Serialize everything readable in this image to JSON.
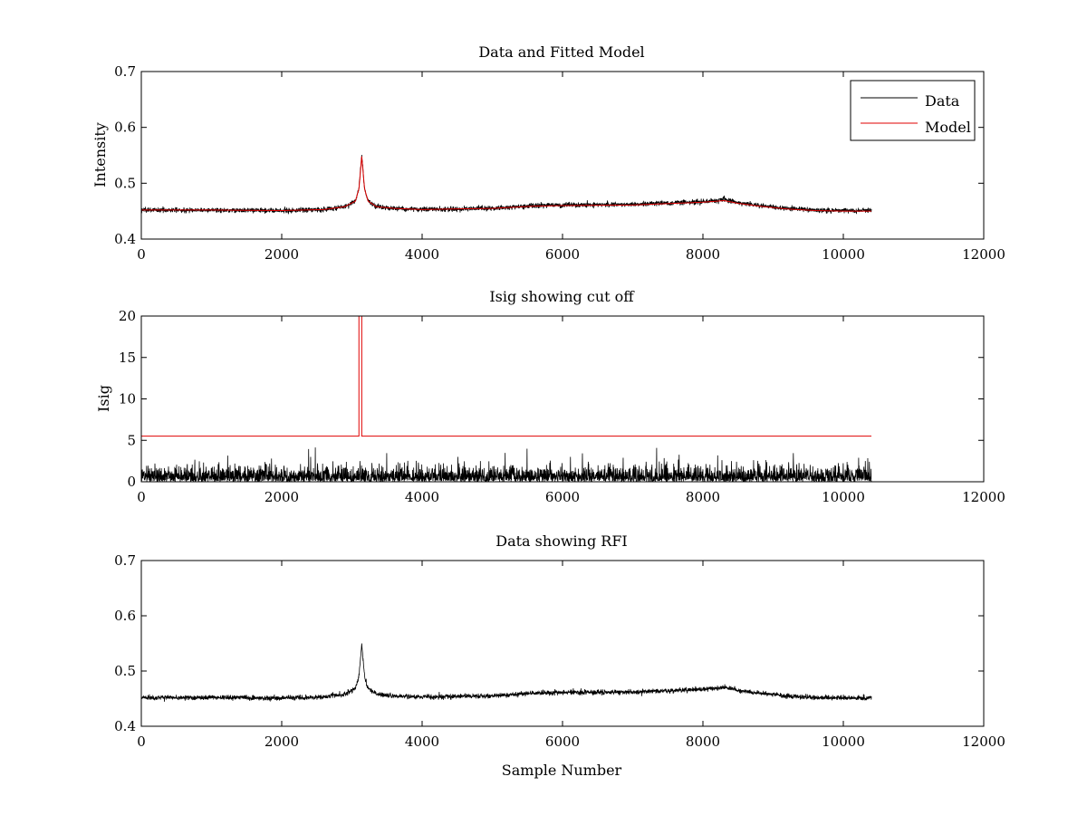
{
  "figure": {
    "background": "#ffffff",
    "axis_color": "#000000",
    "data_color": "#000000",
    "model_color": "#e00000"
  },
  "chart_data": [
    {
      "type": "line",
      "title": "Data and Fitted Model",
      "xlabel": "",
      "ylabel": "Intensity",
      "xlim": [
        0,
        12000
      ],
      "ylim": [
        0.4,
        0.7
      ],
      "xticks": [
        0,
        2000,
        4000,
        6000,
        8000,
        10000,
        12000
      ],
      "yticks": [
        0.4,
        0.5,
        0.6,
        0.7
      ],
      "xtick_labels": [
        "0",
        "2000",
        "4000",
        "6000",
        "8000",
        "10000",
        "12000"
      ],
      "ytick_labels": [
        "0.4",
        "0.5",
        "0.6",
        "0.7"
      ],
      "grid": false,
      "legend": {
        "placement": "top-right",
        "entries": [
          "Data",
          "Model"
        ]
      },
      "series": [
        {
          "name": "Data",
          "color": "#000000",
          "style": "noisy",
          "noise_amplitude": 0.004,
          "x": [
            0,
            1000,
            2000,
            2600,
            2900,
            3050,
            3100,
            3140,
            3180,
            3230,
            3350,
            3600,
            4000,
            5000,
            5600,
            6000,
            7000,
            7600,
            8000,
            8200,
            8300,
            8500,
            8800,
            9200,
            9600,
            10000,
            10400
          ],
          "y": [
            0.452,
            0.452,
            0.451,
            0.453,
            0.458,
            0.468,
            0.49,
            0.55,
            0.49,
            0.468,
            0.458,
            0.455,
            0.453,
            0.455,
            0.46,
            0.461,
            0.462,
            0.465,
            0.467,
            0.469,
            0.471,
            0.465,
            0.46,
            0.455,
            0.452,
            0.451,
            0.451
          ]
        },
        {
          "name": "Model",
          "color": "#e00000",
          "style": "smooth",
          "x": [
            0,
            1000,
            2000,
            2600,
            2900,
            3050,
            3100,
            3140,
            3180,
            3230,
            3350,
            3600,
            4000,
            5000,
            5600,
            6000,
            7000,
            7600,
            8000,
            8200,
            8300,
            8500,
            8800,
            9200,
            9600,
            10000,
            10400
          ],
          "y": [
            0.452,
            0.452,
            0.451,
            0.453,
            0.458,
            0.468,
            0.49,
            0.548,
            0.49,
            0.468,
            0.458,
            0.455,
            0.453,
            0.455,
            0.459,
            0.46,
            0.461,
            0.464,
            0.466,
            0.468,
            0.469,
            0.464,
            0.459,
            0.454,
            0.451,
            0.45,
            0.45
          ]
        }
      ]
    },
    {
      "type": "line",
      "title": "Isig showing cut off",
      "xlabel": "",
      "ylabel": "Isig",
      "xlim": [
        0,
        12000
      ],
      "ylim": [
        0,
        20
      ],
      "xticks": [
        0,
        2000,
        4000,
        6000,
        8000,
        10000,
        12000
      ],
      "yticks": [
        0,
        5,
        10,
        15,
        20
      ],
      "xtick_labels": [
        "0",
        "2000",
        "4000",
        "6000",
        "8000",
        "10000",
        "12000"
      ],
      "ytick_labels": [
        "0",
        "5",
        "10",
        "15",
        "20"
      ],
      "grid": false,
      "series": [
        {
          "color": "#000000",
          "style": "abs-noise",
          "x_range": [
            0,
            10400
          ],
          "typical_max": 2.0,
          "peak_max": 4.3
        },
        {
          "color": "#e00000",
          "style": "step",
          "x": [
            0,
            3100,
            3100,
            3140,
            3140,
            10400
          ],
          "y": [
            5.5,
            5.5,
            20,
            20,
            5.5,
            5.5
          ]
        }
      ]
    },
    {
      "type": "line",
      "title": "Data showing RFI",
      "xlabel": "Sample Number",
      "ylabel": "",
      "xlim": [
        0,
        12000
      ],
      "ylim": [
        0.4,
        0.7
      ],
      "xticks": [
        0,
        2000,
        4000,
        6000,
        8000,
        10000,
        12000
      ],
      "yticks": [
        0.4,
        0.5,
        0.6,
        0.7
      ],
      "xtick_labels": [
        "0",
        "2000",
        "4000",
        "6000",
        "8000",
        "10000",
        "12000"
      ],
      "ytick_labels": [
        "0.4",
        "0.5",
        "0.6",
        "0.7"
      ],
      "grid": false,
      "series": [
        {
          "color": "#000000",
          "style": "noisy",
          "noise_amplitude": 0.004,
          "x": [
            0,
            1000,
            2000,
            2600,
            2900,
            3050,
            3100,
            3140,
            3180,
            3230,
            3350,
            3600,
            4000,
            5000,
            5600,
            6000,
            7000,
            7600,
            8000,
            8200,
            8300,
            8500,
            8800,
            9200,
            9600,
            10000,
            10400
          ],
          "y": [
            0.452,
            0.452,
            0.451,
            0.453,
            0.458,
            0.468,
            0.49,
            0.55,
            0.49,
            0.468,
            0.458,
            0.455,
            0.453,
            0.455,
            0.46,
            0.461,
            0.462,
            0.465,
            0.467,
            0.469,
            0.471,
            0.465,
            0.46,
            0.455,
            0.452,
            0.451,
            0.451
          ]
        }
      ]
    }
  ]
}
